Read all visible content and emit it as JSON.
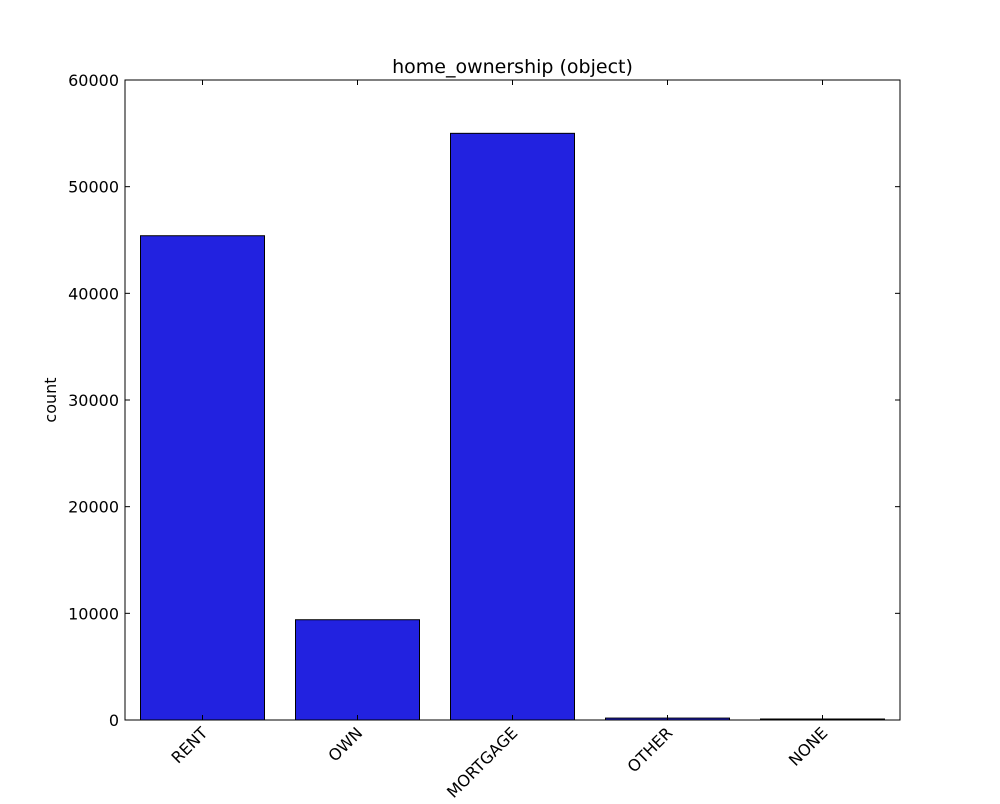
{
  "chart_data": {
    "type": "bar",
    "title": "home_ownership (object)",
    "xlabel": "",
    "ylabel": "count",
    "categories": [
      "RENT",
      "OWN",
      "MORTGAGE",
      "OTHER",
      "NONE"
    ],
    "values": [
      45400,
      9400,
      55000,
      180,
      50
    ],
    "ylim": [
      0,
      60000
    ],
    "yticks": [
      0,
      10000,
      20000,
      30000,
      40000,
      50000,
      60000
    ],
    "ytick_labels": [
      "0",
      "10000",
      "20000",
      "30000",
      "40000",
      "50000",
      "60000"
    ],
    "bar_color": "#2222e0",
    "edge_color": "#000000",
    "grid": false,
    "legend": "none"
  }
}
